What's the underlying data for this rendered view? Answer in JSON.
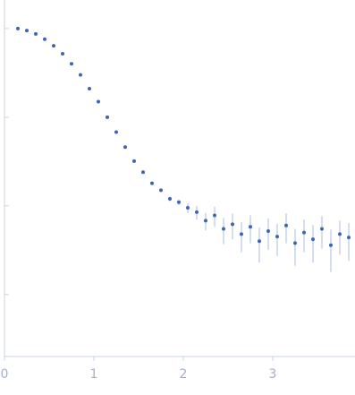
{
  "chart_data": {
    "type": "scatter",
    "x": [
      0.15,
      0.25,
      0.35,
      0.45,
      0.55,
      0.65,
      0.75,
      0.85,
      0.95,
      1.05,
      1.15,
      1.25,
      1.35,
      1.45,
      1.55,
      1.65,
      1.75,
      1.85,
      1.95,
      2.05,
      2.15,
      2.25,
      2.35,
      2.45,
      2.55,
      2.65,
      2.75,
      2.85,
      2.95,
      3.05,
      3.15,
      3.25,
      3.35,
      3.45,
      3.55,
      3.65,
      3.75,
      3.85
    ],
    "series": [
      {
        "color": "#3b65b5",
        "values": [
          1.0,
          0.95,
          0.87,
          0.76,
          0.64,
          0.52,
          0.4,
          0.3,
          0.21,
          0.15,
          0.1,
          0.068,
          0.046,
          0.032,
          0.024,
          0.018,
          0.015,
          0.012,
          0.011,
          0.0095,
          0.0085,
          0.0068,
          0.0078,
          0.0055,
          0.0062,
          0.0048,
          0.0058,
          0.004,
          0.0052,
          0.0045,
          0.006,
          0.0038,
          0.005,
          0.0042,
          0.0055,
          0.0036,
          0.0048,
          0.0044
        ],
        "errors": [
          0.01,
          0.01,
          0.01,
          0.008,
          0.006,
          0.005,
          0.004,
          0.003,
          0.002,
          0.0015,
          0.001,
          0.0008,
          0.0006,
          0.0005,
          0.0005,
          0.0005,
          0.0006,
          0.0007,
          0.0008,
          0.0012,
          0.0015,
          0.0015,
          0.002,
          0.0018,
          0.002,
          0.0018,
          0.002,
          0.0017,
          0.002,
          0.0018,
          0.0022,
          0.0017,
          0.002,
          0.0019,
          0.0022,
          0.0018,
          0.002,
          0.002
        ],
        "error_color": "#a9bde0"
      }
    ],
    "xlim": [
      0,
      3.92
    ],
    "xticks": [
      0,
      1,
      2,
      3
    ],
    "ylim": [
      0.0002,
      2.1
    ],
    "yticks": [
      1,
      0.1,
      0.01,
      0.001
    ],
    "ylog": true
  }
}
